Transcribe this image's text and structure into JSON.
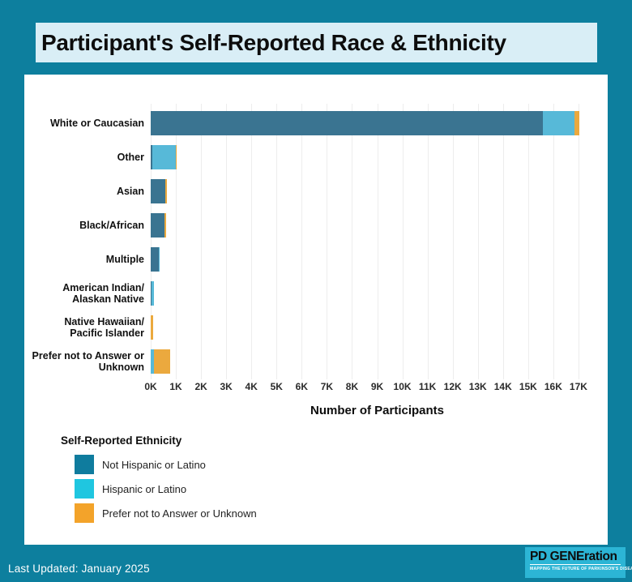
{
  "title": "Participant's Self-Reported Race & Ethnicity",
  "chart_data": {
    "type": "bar",
    "orientation": "horizontal",
    "stacked": true,
    "title": "Participant's Self-Reported Race & Ethnicity",
    "xlabel": "Number of Participants",
    "xlim": [
      0,
      18000
    ],
    "x_tick_labels": [
      "0K",
      "1K",
      "2K",
      "3K",
      "4K",
      "5K",
      "6K",
      "7K",
      "8K",
      "9K",
      "10K",
      "11K",
      "12K",
      "13K",
      "14K",
      "15K",
      "16K",
      "17K"
    ],
    "grid": true,
    "legend_title": "Self-Reported Ethnicity",
    "legend_position": "bottom-left",
    "categories": [
      "White or Caucasian",
      "Other",
      "Asian",
      "Black/African",
      "Multiple",
      "American Indian/\nAlaskan Native",
      "Native Hawaiian/\nPacific Islander",
      "Prefer not to Answer or\nUnknown"
    ],
    "series": [
      {
        "name": "Not Hispanic or Latino",
        "bar_color": "#3a7491",
        "legend_color": "#0f7c9e",
        "values": [
          15600,
          60,
          580,
          560,
          310,
          30,
          0,
          0
        ]
      },
      {
        "name": "Hispanic or Latino",
        "bar_color": "#57b9d8",
        "legend_color": "#1fc6e0",
        "values": [
          1250,
          950,
          0,
          0,
          60,
          100,
          0,
          130
        ]
      },
      {
        "name": "Prefer not to Answer or Unknown",
        "bar_color": "#eba93e",
        "legend_color": "#f3a32a",
        "values": [
          200,
          30,
          60,
          40,
          0,
          0,
          90,
          650
        ]
      }
    ]
  },
  "footer": {
    "last_updated": "Last Updated: January 2025"
  },
  "logo": {
    "name": "PD GENEration",
    "tagline": "MAPPING THE FUTURE OF PARKINSON'S DISEASE"
  },
  "colors": {
    "background": "#0d7f9e",
    "title_bar": "#d9eef6",
    "panel": "#ffffff",
    "gridline": "#ededed",
    "text": "#0d0d0d",
    "footer_text": "#ffffff",
    "logo_background": "#2cb5d5"
  }
}
